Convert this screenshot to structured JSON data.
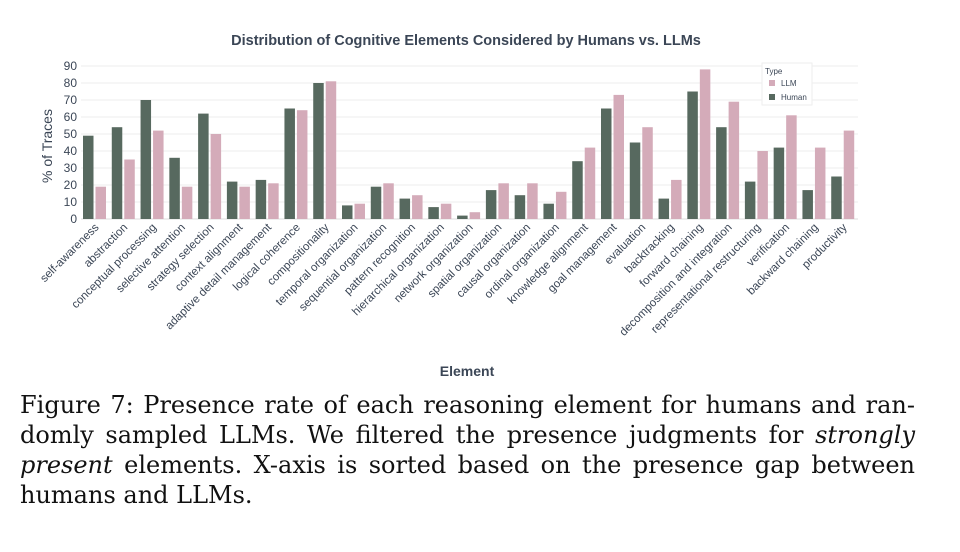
{
  "chart_data": {
    "type": "bar",
    "title": "Distribution of Cognitive Elements Considered by Humans vs. LLMs",
    "xlabel": "Element",
    "ylabel": "% of Traces",
    "ylim": [
      0,
      90
    ],
    "yticks": [
      0,
      10,
      20,
      30,
      40,
      50,
      60,
      70,
      80,
      90
    ],
    "grid": true,
    "legend": {
      "title": "Type",
      "placement": "top-right"
    },
    "categories": [
      "self-awareness",
      "abstraction",
      "conceptual processing",
      "selective attention",
      "strategy selection",
      "context alignment",
      "adaptive detail management",
      "logical coherence",
      "compositionality",
      "temporal organization",
      "sequential organization",
      "pattern recognition",
      "hierarchical organization",
      "network organization",
      "spatial organization",
      "causal organization",
      "ordinal organization",
      "knowledge alignment",
      "goal management",
      "evaluation",
      "backtracking",
      "forward chaining",
      "decomposition and integration",
      "representational restructuring",
      "verification",
      "backward chaining",
      "productivity"
    ],
    "series": [
      {
        "name": "Human",
        "color": "#57695f",
        "values": [
          49,
          54,
          70,
          36,
          62,
          22,
          23,
          65,
          80,
          8,
          19,
          12,
          7,
          2,
          17,
          14,
          9,
          34,
          65,
          45,
          12,
          75,
          54,
          22,
          42,
          17,
          25
        ]
      },
      {
        "name": "LLM",
        "color": "#d4abb9",
        "values": [
          19,
          35,
          52,
          19,
          50,
          19,
          21,
          64,
          81,
          9,
          21,
          14,
          9,
          4,
          21,
          21,
          16,
          42,
          73,
          54,
          23,
          88,
          69,
          40,
          61,
          42,
          52
        ]
      }
    ]
  },
  "caption": {
    "lead": "Figure 7: Presence rate of each reasoning element for humans and ran- domly sampled LLMs. We filtered the presence judgments for ",
    "em1": "strongly present",
    "tail": " elements. X-axis is sorted based on the presence gap between humans and LLMs."
  }
}
